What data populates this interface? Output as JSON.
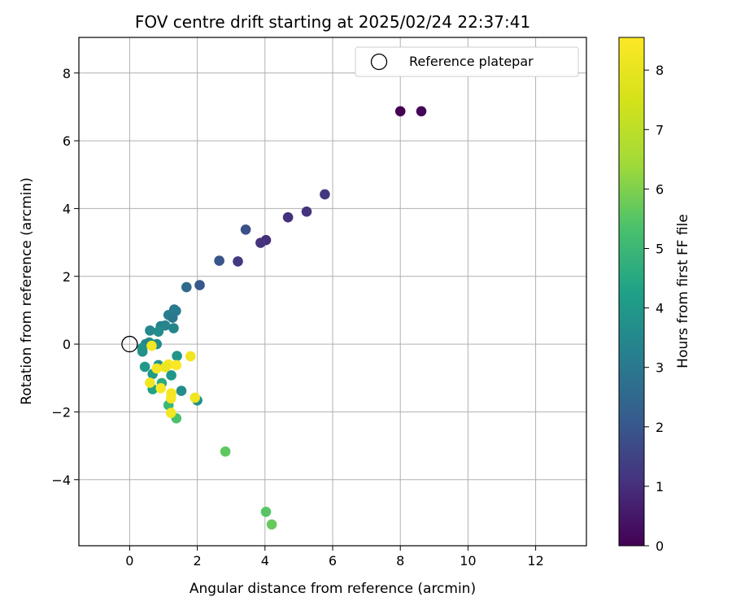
{
  "chart_data": {
    "type": "scatter",
    "title": "FOV centre drift starting at 2025/02/24 22:37:41",
    "xlabel": "Angular distance from reference (arcmin)",
    "ylabel": "Rotation from reference (arcmin)",
    "xlim": [
      -1.5,
      13.5
    ],
    "ylim": [
      -5.95,
      9.05
    ],
    "xticks": [
      0,
      2,
      4,
      6,
      8,
      10,
      12
    ],
    "xtick_labels": [
      "0",
      "2",
      "4",
      "6",
      "8",
      "10",
      "12"
    ],
    "yticks": [
      -4,
      -2,
      0,
      2,
      4,
      6,
      8
    ],
    "ytick_labels": [
      "−4",
      "−2",
      "0",
      "2",
      "4",
      "6",
      "8"
    ],
    "grid": true,
    "legend": {
      "position": "top-right",
      "entries": [
        "Reference platepar"
      ]
    },
    "reference_point": {
      "x": 0,
      "y": 0,
      "label": "Reference platepar"
    },
    "colorbar": {
      "label": "Hours from first FF file",
      "colormap": "viridis",
      "range": [
        0,
        8.55
      ],
      "ticks": [
        0,
        1,
        2,
        3,
        4,
        5,
        6,
        7,
        8
      ],
      "tick_labels": [
        "0",
        "1",
        "2",
        "3",
        "4",
        "5",
        "6",
        "7",
        "8"
      ]
    },
    "points": [
      {
        "x": 8.0,
        "y": 6.87,
        "c": 0.0
      },
      {
        "x": 8.62,
        "y": 6.87,
        "c": 0.1
      },
      {
        "x": 5.77,
        "y": 4.42,
        "c": 1.2
      },
      {
        "x": 5.23,
        "y": 3.91,
        "c": 1.15
      },
      {
        "x": 4.68,
        "y": 3.74,
        "c": 1.05
      },
      {
        "x": 3.43,
        "y": 3.38,
        "c": 1.8
      },
      {
        "x": 4.03,
        "y": 3.07,
        "c": 1.0
      },
      {
        "x": 3.87,
        "y": 2.99,
        "c": 1.1
      },
      {
        "x": 2.65,
        "y": 2.46,
        "c": 1.95
      },
      {
        "x": 3.2,
        "y": 2.44,
        "c": 1.25
      },
      {
        "x": 2.07,
        "y": 1.74,
        "c": 2.0
      },
      {
        "x": 1.68,
        "y": 1.68,
        "c": 2.6
      },
      {
        "x": 1.32,
        "y": 1.02,
        "c": 2.9
      },
      {
        "x": 1.37,
        "y": 0.98,
        "c": 3.1
      },
      {
        "x": 1.15,
        "y": 0.86,
        "c": 3.2
      },
      {
        "x": 1.27,
        "y": 0.78,
        "c": 3.0
      },
      {
        "x": 0.92,
        "y": 0.53,
        "c": 3.3
      },
      {
        "x": 1.05,
        "y": 0.55,
        "c": 3.4
      },
      {
        "x": 1.3,
        "y": 0.47,
        "c": 3.35
      },
      {
        "x": 0.6,
        "y": 0.4,
        "c": 3.5
      },
      {
        "x": 0.85,
        "y": 0.37,
        "c": 3.6
      },
      {
        "x": 0.58,
        "y": 0.05,
        "c": 3.7
      },
      {
        "x": 0.47,
        "y": 0.0,
        "c": 3.45
      },
      {
        "x": 0.8,
        "y": 0.0,
        "c": 3.55
      },
      {
        "x": 0.37,
        "y": -0.12,
        "c": 3.8
      },
      {
        "x": 0.38,
        "y": -0.22,
        "c": 3.75
      },
      {
        "x": 1.4,
        "y": -0.35,
        "c": 3.9
      },
      {
        "x": 0.85,
        "y": -0.62,
        "c": 3.85
      },
      {
        "x": 0.45,
        "y": -0.67,
        "c": 4.0
      },
      {
        "x": 0.68,
        "y": -0.88,
        "c": 4.1
      },
      {
        "x": 1.23,
        "y": -0.92,
        "c": 3.95
      },
      {
        "x": 0.95,
        "y": -1.15,
        "c": 4.6
      },
      {
        "x": 0.68,
        "y": -1.33,
        "c": 4.3
      },
      {
        "x": 1.53,
        "y": -1.38,
        "c": 3.65
      },
      {
        "x": 2.0,
        "y": -1.66,
        "c": 3.7
      },
      {
        "x": 1.15,
        "y": -1.8,
        "c": 5.0
      },
      {
        "x": 1.38,
        "y": -2.19,
        "c": 5.3
      },
      {
        "x": 2.83,
        "y": -3.17,
        "c": 5.6
      },
      {
        "x": 4.03,
        "y": -4.95,
        "c": 5.5
      },
      {
        "x": 4.2,
        "y": -5.32,
        "c": 5.7
      },
      {
        "x": 0.65,
        "y": -0.05,
        "c": 8.3
      },
      {
        "x": 1.8,
        "y": -0.36,
        "c": 8.2
      },
      {
        "x": 1.15,
        "y": -0.6,
        "c": 8.4
      },
      {
        "x": 1.38,
        "y": -0.62,
        "c": 8.5
      },
      {
        "x": 1.05,
        "y": -0.68,
        "c": 8.1
      },
      {
        "x": 0.8,
        "y": -0.72,
        "c": 8.35
      },
      {
        "x": 0.6,
        "y": -1.14,
        "c": 8.25
      },
      {
        "x": 0.92,
        "y": -1.3,
        "c": 8.45
      },
      {
        "x": 1.23,
        "y": -1.45,
        "c": 8.3
      },
      {
        "x": 1.22,
        "y": -1.6,
        "c": 8.4
      },
      {
        "x": 1.93,
        "y": -1.58,
        "c": 8.2
      },
      {
        "x": 1.22,
        "y": -2.03,
        "c": 8.3
      }
    ]
  }
}
